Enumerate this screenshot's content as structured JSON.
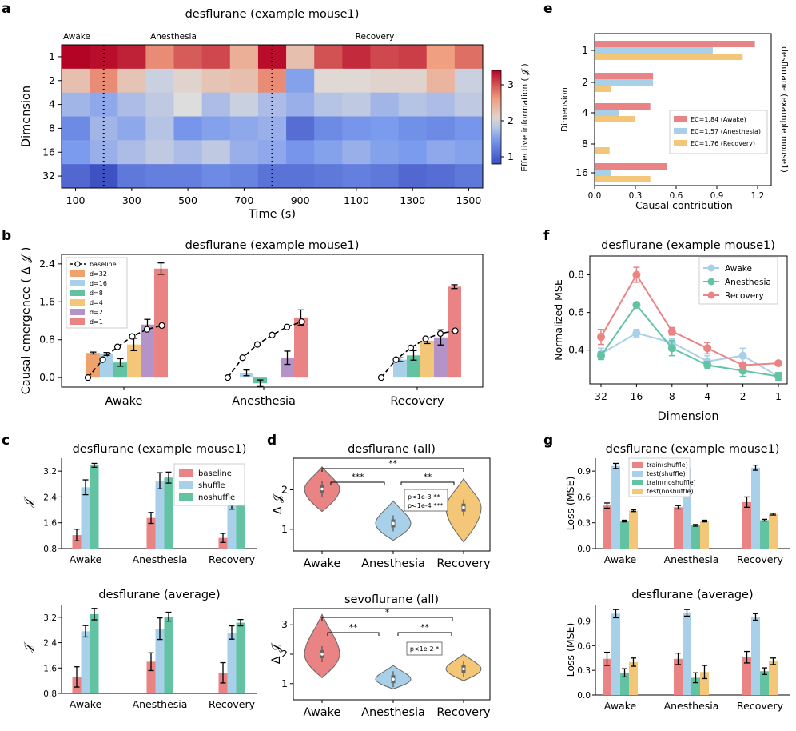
{
  "colors": {
    "baseline": "#ea8383",
    "d32": "#f0a26c",
    "d16": "#a8d0e8",
    "d8": "#62c3a2",
    "d4": "#f3c678",
    "d2": "#b493c9",
    "d1": "#ea8383",
    "awake": "#a8d0e8",
    "anesthesia": "#62c3a2",
    "recovery": "#ea8383",
    "shuffle": "#a8d0e8",
    "noshuffle": "#62c3a2",
    "test_noshuffle": "#f3c678"
  },
  "panel_labels": {
    "a": "a",
    "b": "b",
    "c": "c",
    "d": "d",
    "e": "e",
    "f": "f",
    "g": "g"
  },
  "chart_data": [
    {
      "id": "a",
      "type": "heatmap",
      "title": "desflurane (example mouse1)",
      "xlabel": "Time (s)",
      "ylabel": "Dimension",
      "colorbar_label": "Effective information ( 𝒥 )",
      "colorbar_ticks": [
        "1",
        "2",
        "3"
      ],
      "colorbar_range": [
        0.8,
        3.4
      ],
      "phases": [
        "Awake",
        "Anesthesia",
        "Recovery"
      ],
      "x_tick_labels": [
        "100",
        "300",
        "500",
        "700",
        "900",
        "1100",
        "1300",
        "1500"
      ],
      "y_categories": [
        "1",
        "2",
        "4",
        "8",
        "16",
        "32"
      ],
      "n_columns": 15,
      "values": [
        [
          3.4,
          3.35,
          3.25,
          2.7,
          2.95,
          3.05,
          2.45,
          3.35,
          2.3,
          3.0,
          3.2,
          3.05,
          3.1,
          2.6,
          2.85
        ],
        [
          2.3,
          2.7,
          2.25,
          1.9,
          2.1,
          2.25,
          2.3,
          2.7,
          1.55,
          2.05,
          2.05,
          2.1,
          2.1,
          2.4,
          1.9
        ],
        [
          1.7,
          1.6,
          1.75,
          1.85,
          2.0,
          1.75,
          1.9,
          1.75,
          1.65,
          1.8,
          1.85,
          1.7,
          1.8,
          1.75,
          1.85
        ],
        [
          1.35,
          1.7,
          1.6,
          1.8,
          1.45,
          1.55,
          1.6,
          1.65,
          1.1,
          1.35,
          1.45,
          1.5,
          1.4,
          1.35,
          1.45
        ],
        [
          1.5,
          1.65,
          1.75,
          1.85,
          1.75,
          1.85,
          1.65,
          1.6,
          1.45,
          1.55,
          1.65,
          1.55,
          1.5,
          1.6,
          1.55
        ],
        [
          1.05,
          0.85,
          1.2,
          1.25,
          1.25,
          1.35,
          1.3,
          1.15,
          1.15,
          1.2,
          1.25,
          1.2,
          1.05,
          1.1,
          1.2
        ]
      ],
      "phase_boundaries_after_column": [
        1,
        7
      ]
    },
    {
      "id": "b",
      "type": "bar",
      "title": "desflurane (example mouse1)",
      "ylabel": "Causal emergence ( Δ 𝒥 )",
      "ylim": [
        -0.2,
        2.6
      ],
      "yticks": [
        "0.0",
        "0.8",
        "1.6",
        "2.4"
      ],
      "categories": [
        "Awake",
        "Anesthesia",
        "Recovery"
      ],
      "legend": [
        "baseline",
        "d=32",
        "d=16",
        "d=8",
        "d=4",
        "d=2",
        "d=1"
      ],
      "series": [
        {
          "name": "d=32",
          "values": [
            0.52,
            0.0,
            0.0
          ],
          "err": [
            0.02,
            0.0,
            0.0
          ]
        },
        {
          "name": "d=16",
          "values": [
            0.5,
            0.1,
            0.38
          ],
          "err": [
            0.03,
            0.06,
            0.04
          ]
        },
        {
          "name": "d=8",
          "values": [
            0.32,
            -0.12,
            0.47
          ],
          "err": [
            0.08,
            0.07,
            0.1
          ]
        },
        {
          "name": "d=4",
          "values": [
            0.7,
            0.0,
            0.78
          ],
          "err": [
            0.13,
            0.04,
            0.06
          ]
        },
        {
          "name": "d=2",
          "values": [
            1.12,
            0.42,
            0.85
          ],
          "err": [
            0.11,
            0.14,
            0.16
          ]
        },
        {
          "name": "d=1",
          "values": [
            2.3,
            1.27,
            1.92
          ],
          "err": [
            0.12,
            0.16,
            0.04
          ]
        }
      ],
      "baseline": [
        [
          0.0,
          0.38,
          0.65,
          0.87,
          1.02,
          1.1
        ],
        [
          0.0,
          0.42,
          0.7,
          0.9,
          1.07,
          1.18
        ],
        [
          0.0,
          0.38,
          0.63,
          0.82,
          0.93,
          0.99
        ]
      ]
    },
    {
      "id": "c1",
      "type": "bar",
      "title": "desflurane (example mouse1)",
      "ylabel": "𝒥",
      "ylim": [
        0.8,
        3.6
      ],
      "yticks": [
        "0.8",
        "1.6",
        "2.4",
        "3.2"
      ],
      "categories": [
        "Awake",
        "Anesthesia",
        "Recovery"
      ],
      "series": [
        {
          "name": "baseline",
          "values": [
            1.22,
            1.75,
            1.13
          ],
          "err": [
            0.18,
            0.17,
            0.14
          ]
        },
        {
          "name": "shuffle",
          "values": [
            2.7,
            2.9,
            2.42
          ],
          "err": [
            0.23,
            0.25,
            0.4
          ]
        },
        {
          "name": "noshuffle",
          "values": [
            3.38,
            3.0,
            3.27
          ],
          "err": [
            0.06,
            0.17,
            0.06
          ]
        }
      ]
    },
    {
      "id": "c2",
      "type": "bar",
      "title": "desflurane (average)",
      "ylabel": "𝒥",
      "ylim": [
        0.8,
        3.6
      ],
      "yticks": [
        "0.8",
        "1.6",
        "2.4",
        "3.2"
      ],
      "categories": [
        "Awake",
        "Anesthesia",
        "Recovery"
      ],
      "series": [
        {
          "name": "baseline",
          "values": [
            1.32,
            1.8,
            1.45
          ],
          "err": [
            0.32,
            0.28,
            0.32
          ]
        },
        {
          "name": "shuffle",
          "values": [
            2.76,
            2.84,
            2.72
          ],
          "err": [
            0.18,
            0.34,
            0.21
          ]
        },
        {
          "name": "noshuffle",
          "values": [
            3.3,
            3.22,
            3.03
          ],
          "err": [
            0.18,
            0.14,
            0.1
          ]
        }
      ]
    },
    {
      "id": "d1",
      "type": "violin",
      "title": "desflurane (all)",
      "ylabel": "Δ 𝒥",
      "ylim": [
        0.45,
        2.8
      ],
      "yticks": [
        "1",
        "2"
      ],
      "categories": [
        "Awake",
        "Anesthesia",
        "Recovery"
      ],
      "centers": [
        2.02,
        1.15,
        1.55
      ],
      "ranges": [
        [
          1.45,
          2.58
        ],
        [
          0.72,
          1.72
        ],
        [
          0.68,
          2.28
        ]
      ],
      "significance": [
        "***",
        "**",
        "**"
      ],
      "annotation": [
        "p<1e-3 **",
        "p<1e-4 ***"
      ]
    },
    {
      "id": "d2",
      "type": "violin",
      "title": "sevoflurane (all)",
      "ylabel": "Δ 𝒥",
      "ylim": [
        0.45,
        3.55
      ],
      "yticks": [
        "1",
        "2",
        "3"
      ],
      "categories": [
        "Awake",
        "Anesthesia",
        "Recovery"
      ],
      "centers": [
        2.0,
        1.15,
        1.5
      ],
      "ranges": [
        [
          1.2,
          3.35
        ],
        [
          0.82,
          1.62
        ],
        [
          1.1,
          2.0
        ]
      ],
      "significance": [
        "**",
        "*",
        "**"
      ],
      "annotation": [
        "p<1e-2 *"
      ]
    },
    {
      "id": "e",
      "type": "bar",
      "orientation": "horizontal",
      "xlabel": "Causal contribution",
      "ylabel": "Dimension",
      "side_label": "desflurane (example mouse1)",
      "xlim": [
        0.0,
        1.3
      ],
      "xticks": [
        "0.0",
        "0.3",
        "0.6",
        "0.9",
        "1.2"
      ],
      "categories": [
        "1",
        "2",
        "4",
        "8",
        "16"
      ],
      "series": [
        {
          "name": "EC=1.84 (Awake)",
          "values": [
            1.18,
            0.43,
            0.41,
            0.0,
            0.53
          ]
        },
        {
          "name": "EC=1.57 (Anesthesia)",
          "values": [
            0.87,
            0.43,
            0.18,
            0.0,
            0.12
          ]
        },
        {
          "name": "EC=1.76 (Recovery)",
          "values": [
            1.09,
            0.12,
            0.3,
            0.11,
            0.41
          ]
        }
      ]
    },
    {
      "id": "f",
      "type": "line",
      "title": "desflurane (example mouse1)",
      "xlabel": "Dimension",
      "ylabel": "Normalized MSE",
      "categories": [
        "32",
        "16",
        "8",
        "4",
        "2",
        "1"
      ],
      "ylim": [
        0.22,
        0.9
      ],
      "yticks": [
        "0.4",
        "0.6",
        "0.8"
      ],
      "series": [
        {
          "name": "Awake",
          "values": [
            0.38,
            0.49,
            0.44,
            0.34,
            0.37,
            0.26
          ],
          "err": [
            0.03,
            0.02,
            0.02,
            0.03,
            0.04,
            0.02
          ]
        },
        {
          "name": "Anesthesia",
          "values": [
            0.37,
            0.64,
            0.41,
            0.32,
            0.29,
            0.26
          ],
          "err": [
            0.02,
            0.01,
            0.04,
            0.02,
            0.03,
            0.02
          ]
        },
        {
          "name": "Recovery",
          "values": [
            0.47,
            0.8,
            0.5,
            0.41,
            0.32,
            0.33
          ],
          "err": [
            0.04,
            0.04,
            0.02,
            0.03,
            0.01,
            0.01
          ]
        }
      ]
    },
    {
      "id": "g1",
      "type": "bar",
      "title": "desflurane (example mouse1)",
      "ylabel": "Loss (MSE)",
      "ylim": [
        0.0,
        1.05
      ],
      "yticks": [
        "0.0",
        "0.3",
        "0.6",
        "0.9"
      ],
      "categories": [
        "Awake",
        "Anesthesia",
        "Recovery"
      ],
      "series": [
        {
          "name": "train(shuffle)",
          "values": [
            0.5,
            0.48,
            0.54
          ],
          "err": [
            0.03,
            0.02,
            0.06
          ]
        },
        {
          "name": "test(shuffle)",
          "values": [
            0.96,
            0.94,
            0.94
          ],
          "err": [
            0.03,
            0.01,
            0.03
          ]
        },
        {
          "name": "train(noshuffle)",
          "values": [
            0.32,
            0.27,
            0.33
          ],
          "err": [
            0.01,
            0.01,
            0.01
          ]
        },
        {
          "name": "test(noshuffle)",
          "values": [
            0.44,
            0.32,
            0.4
          ],
          "err": [
            0.01,
            0.01,
            0.01
          ]
        }
      ]
    },
    {
      "id": "g2",
      "type": "bar",
      "title": "desflurane (average)",
      "ylabel": "Loss (MSE)",
      "ylim": [
        0.0,
        1.1
      ],
      "yticks": [
        "0.0",
        "0.3",
        "0.6",
        "0.9"
      ],
      "categories": [
        "Awake",
        "Anesthesia",
        "Recovery"
      ],
      "series": [
        {
          "name": "train(shuffle)",
          "values": [
            0.44,
            0.44,
            0.46
          ],
          "err": [
            0.08,
            0.07,
            0.07
          ]
        },
        {
          "name": "test(shuffle)",
          "values": [
            0.99,
            1.0,
            0.95
          ],
          "err": [
            0.05,
            0.04,
            0.04
          ]
        },
        {
          "name": "train(noshuffle)",
          "values": [
            0.27,
            0.21,
            0.29
          ],
          "err": [
            0.05,
            0.06,
            0.04
          ]
        },
        {
          "name": "test(noshuffle)",
          "values": [
            0.4,
            0.28,
            0.41
          ],
          "err": [
            0.05,
            0.08,
            0.04
          ]
        }
      ]
    }
  ]
}
